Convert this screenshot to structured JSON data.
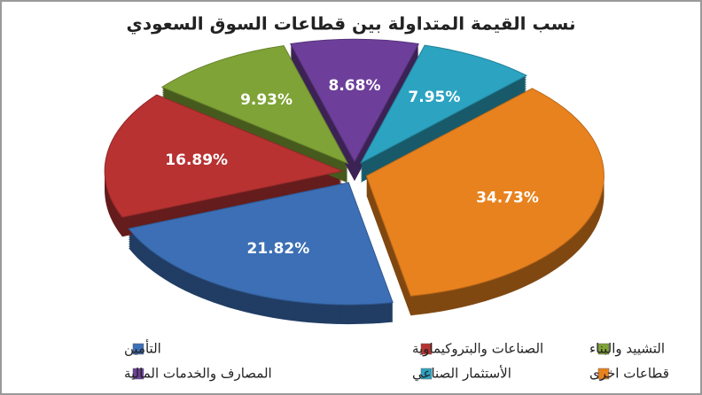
{
  "chart_data": {
    "type": "pie",
    "title": "نسب القيمة المتداولة بين قطاعات السوق السعودي",
    "categories": [
      "التأمين",
      "الصناعات والبتروكيماوية",
      "التشييد والبناء",
      "المصارف والخدمات المالية",
      "الأستثمار الصناعي",
      "قطاعات اخرى"
    ],
    "values": [
      21.82,
      16.89,
      9.93,
      8.68,
      7.95,
      34.73
    ],
    "value_labels": [
      "21.82%",
      "16.89%",
      "9.93%",
      "8.68%",
      "7.95%",
      "34.73%"
    ],
    "colors": [
      "#3c6fb5",
      "#b83232",
      "#7fa336",
      "#6d3f9a",
      "#2ba3c1",
      "#e8821e"
    ]
  }
}
